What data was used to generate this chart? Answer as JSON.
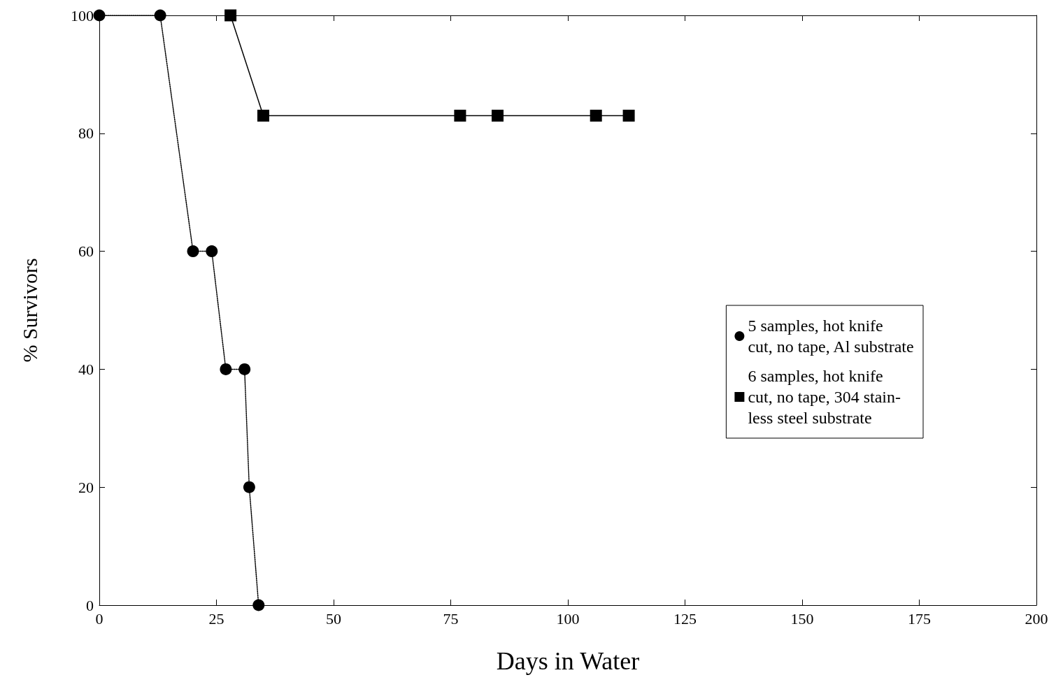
{
  "chart_data": {
    "type": "line",
    "xlabel": "Days in Water",
    "ylabel": "% Survivors",
    "xlim": [
      0,
      200
    ],
    "xticks": [
      0,
      25,
      50,
      75,
      100,
      125,
      150,
      175,
      200
    ],
    "ylim": [
      0,
      100
    ],
    "yticks": [
      0,
      20,
      40,
      60,
      80,
      100
    ],
    "grid": false,
    "legend": "right",
    "series": [
      {
        "name": "5 samples, hot knife\ncut, no tape, Al substrate",
        "color": "#000000",
        "marker": "circle",
        "line_style": "dotted",
        "x": [
          0,
          13,
          20,
          24,
          27,
          31,
          32,
          34
        ],
        "values": [
          100,
          100,
          60,
          60,
          40,
          40,
          20,
          0
        ]
      },
      {
        "name": "6 samples, hot knife\ncut, no tape, 304 stain-\nless steel substrate",
        "color": "#000000",
        "marker": "square",
        "line_style": "solid",
        "x": [
          28,
          35,
          77,
          85,
          106,
          113
        ],
        "values": [
          100,
          83,
          83,
          83,
          83,
          83
        ]
      }
    ]
  }
}
